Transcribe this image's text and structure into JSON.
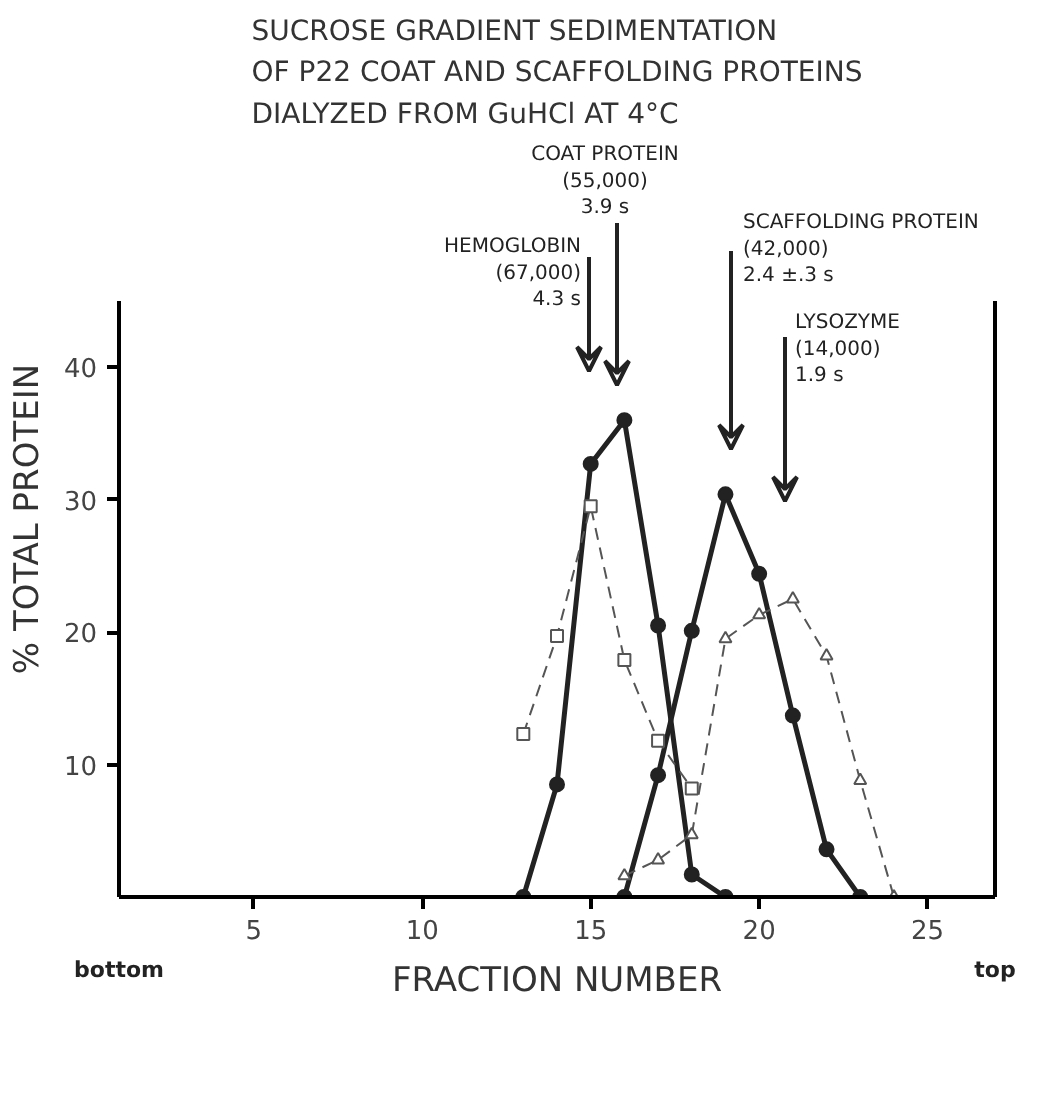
{
  "chart_data": {
    "type": "line",
    "title": "SUCROSE GRADIENT SEDIMENTATION\nOF P22 COAT AND SCAFFOLDING PROTEINS\nDIALYZED FROM GuHCl AT 4°C",
    "xlabel": "FRACTION NUMBER",
    "ylabel": "% TOTAL PROTEIN",
    "xlim": [
      1,
      27
    ],
    "xticks": [
      5,
      10,
      15,
      20,
      25
    ],
    "ylim": [
      0,
      45
    ],
    "yticks": [
      10,
      20,
      30,
      40
    ],
    "grid": false,
    "series": [
      {
        "color": "#222222",
        "marker": "circle",
        "line_style": "solid",
        "x": [
          13,
          14,
          15,
          16,
          17,
          18,
          19
        ],
        "values": [
          0,
          8.5,
          32.7,
          36,
          20.5,
          1.7,
          0
        ]
      },
      {
        "color": "#222222",
        "marker": "circle",
        "line_style": "solid",
        "x": [
          16,
          17,
          18,
          19,
          20,
          21,
          22,
          23
        ],
        "values": [
          0,
          9.2,
          20.1,
          30.4,
          24.4,
          13.7,
          3.6,
          0
        ]
      },
      {
        "color": "#555555",
        "marker": "square",
        "line_style": "dashed",
        "x": [
          13,
          14,
          15,
          16,
          17,
          18
        ],
        "values": [
          12.3,
          19.7,
          29.5,
          17.9,
          11.8,
          8.2
        ]
      },
      {
        "color": "#555555",
        "marker": "triangle",
        "line_style": "dashed",
        "x": [
          16,
          17,
          18,
          19,
          20,
          21,
          22,
          23,
          24
        ],
        "values": [
          1.6,
          2.8,
          4.7,
          19.5,
          21.3,
          22.5,
          18.2,
          8.8,
          0
        ]
      }
    ],
    "annotations": [
      "HEMOGLOBIN\n(67,000)\n4.3 s",
      "COAT PROTEIN\n(55,000)\n3.9 s",
      "SCAFFOLDING PROTEIN\n(42,000)\n2.4 ±.3 s",
      "LYSOZYME\n(14,000)\n1.9 s",
      "bottom",
      "top"
    ]
  }
}
